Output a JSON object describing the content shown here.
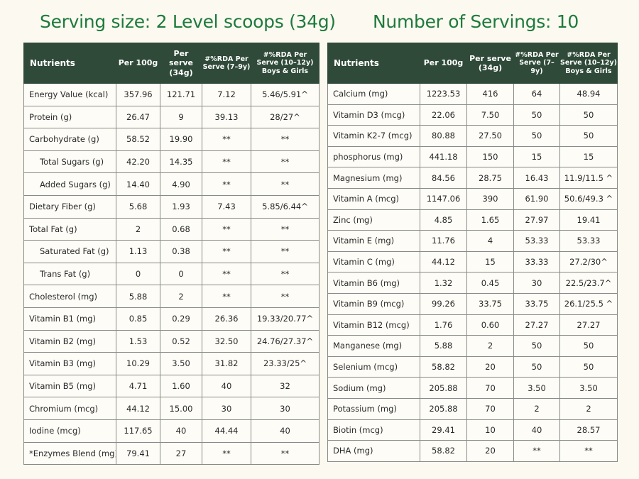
{
  "left": {
    "title": "Serving size: 2 Level scoops (34g)",
    "headers": [
      "Nutrients",
      "Per 100g",
      "Per serve (34g)",
      "#%RDA Per Serve (7–9y)",
      "#%RDA Per Serve (10–12y) Boys & Girls"
    ],
    "rows": [
      [
        "Energy Value (kcal)",
        "357.96",
        "121.71",
        "7.12",
        "5.46/5.91^"
      ],
      [
        "Protein (g)",
        "26.47",
        "9",
        "39.13",
        "28/27^"
      ],
      [
        "Carbohydrate (g)",
        "58.52",
        "19.90",
        "**",
        "**"
      ],
      [
        "Total Sugars (g)",
        "42.20",
        "14.35",
        "**",
        "**"
      ],
      [
        "Added Sugars (g)",
        "14.40",
        "4.90",
        "**",
        "**"
      ],
      [
        "Dietary Fiber (g)",
        "5.68",
        "1.93",
        "7.43",
        "5.85/6.44^"
      ],
      [
        "Total Fat (g)",
        "2",
        "0.68",
        "**",
        "**"
      ],
      [
        "Saturated Fat (g)",
        "1.13",
        "0.38",
        "**",
        "**"
      ],
      [
        "Trans Fat (g)",
        "0",
        "0",
        "**",
        "**"
      ],
      [
        "Cholesterol (mg)",
        "5.88",
        "2",
        "**",
        "**"
      ],
      [
        "Vitamin B1 (mg)",
        "0.85",
        "0.29",
        "26.36",
        "19.33/20.77^"
      ],
      [
        "Vitamin B2 (mg)",
        "1.53",
        "0.52",
        "32.50",
        "24.76/27.37^"
      ],
      [
        "Vitamin B3 (mg)",
        "10.29",
        "3.50",
        "31.82",
        "23.33/25^"
      ],
      [
        "Vitamin B5 (mg)",
        "4.71",
        "1.60",
        "40",
        "32"
      ],
      [
        "Chromium (mcg)",
        "44.12",
        "15.00",
        "30",
        "30"
      ],
      [
        "Iodine (mcg)",
        "117.65",
        "40",
        "44.44",
        "40"
      ],
      [
        "*Enzymes Blend (mg)",
        "79.41",
        "27",
        "**",
        "**"
      ]
    ]
  },
  "right": {
    "title": "Number of Servings: 10",
    "headers": [
      "Nutrients",
      "Per 100g",
      "Per serve (34g)",
      "#%RDA Per Serve (7–9y)",
      "#%RDA Per Serve (10–12y) Boys & Girls"
    ],
    "rows": [
      [
        "Calcium (mg)",
        "1223.53",
        "416",
        "64",
        "48.94"
      ],
      [
        "Vitamin D3 (mcg)",
        "22.06",
        "7.50",
        "50",
        "50"
      ],
      [
        "Vitamin K2-7 (mcg)",
        "80.88",
        "27.50",
        "50",
        "50"
      ],
      [
        "phosphorus (mg)",
        "441.18",
        "150",
        "15",
        "15"
      ],
      [
        "Magnesium (mg)",
        "84.56",
        "28.75",
        "16.43",
        "11.9/11.5 ^"
      ],
      [
        "Vitamin A (mcg)",
        "1147.06",
        "390",
        "61.90",
        "50.6/49.3 ^"
      ],
      [
        "Zinc (mg)",
        "4.85",
        "1.65",
        "27.97",
        "19.41"
      ],
      [
        "Vitamin E (mg)",
        "11.76",
        "4",
        "53.33",
        "53.33"
      ],
      [
        "Vitamin C (mg)",
        "44.12",
        "15",
        "33.33",
        "27.2/30^"
      ],
      [
        "Vitamin B6 (mg)",
        "1.32",
        "0.45",
        "30",
        "22.5/23.7^"
      ],
      [
        "Vitamin B9 (mcg)",
        "99.26",
        "33.75",
        "33.75",
        "26.1/25.5 ^"
      ],
      [
        "Vitamin B12 (mcg)",
        "1.76",
        "0.60",
        "27.27",
        "27.27"
      ],
      [
        "Manganese (mg)",
        "5.88",
        "2",
        "50",
        "50"
      ],
      [
        "Selenium (mcg)",
        "58.82",
        "20",
        "50",
        "50"
      ],
      [
        "Sodium (mg)",
        "205.88",
        "70",
        "3.50",
        "3.50"
      ],
      [
        "Potassium (mg)",
        "205.88",
        "70",
        "2",
        "2"
      ],
      [
        "Biotin (mcg)",
        "29.41",
        "10",
        "40",
        "28.57"
      ],
      [
        "DHA (mg)",
        "58.82",
        "20",
        "**",
        "**"
      ]
    ]
  }
}
